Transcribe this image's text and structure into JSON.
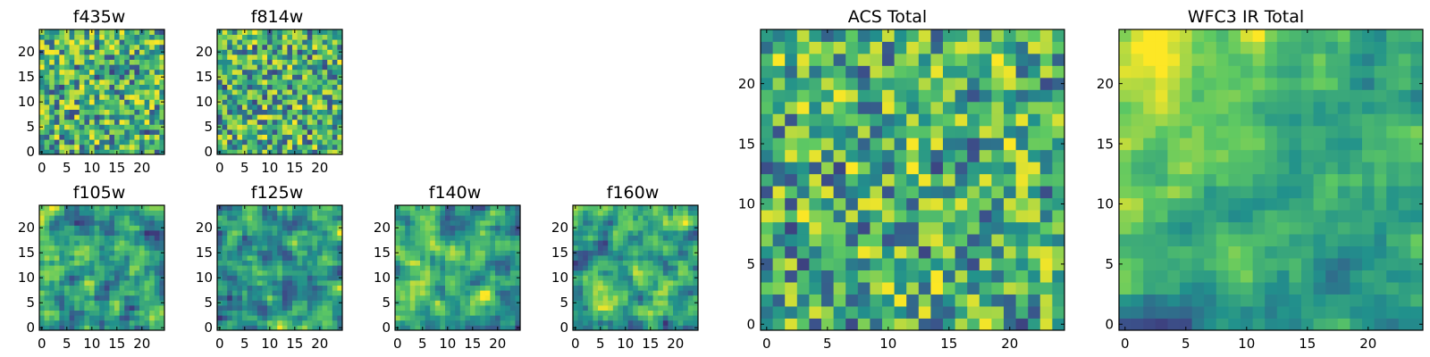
{
  "figure": {
    "background": "#ffffff"
  },
  "colormap": {
    "name": "viridis",
    "stops": [
      "#440154",
      "#3b528b",
      "#21918c",
      "#5ec962",
      "#fde725"
    ]
  },
  "chart_data": [
    {
      "id": "f435w",
      "type": "heatmap",
      "title": "f435w",
      "grid_size": 25,
      "xticks": [
        0,
        5,
        10,
        15,
        20
      ],
      "yticks": [
        0,
        5,
        10,
        15,
        20
      ],
      "xlim": [
        -0.5,
        24.5
      ],
      "ylim": [
        -0.5,
        24.5
      ],
      "pattern": "noise",
      "seed": 11
    },
    {
      "id": "f814w",
      "type": "heatmap",
      "title": "f814w",
      "grid_size": 25,
      "xticks": [
        0,
        5,
        10,
        15,
        20
      ],
      "yticks": [
        0,
        5,
        10,
        15,
        20
      ],
      "xlim": [
        -0.5,
        24.5
      ],
      "ylim": [
        -0.5,
        24.5
      ],
      "pattern": "noise",
      "seed": 23
    },
    {
      "id": "f105w",
      "type": "heatmap",
      "title": "f105w",
      "grid_size": 25,
      "xticks": [
        0,
        5,
        10,
        15,
        20
      ],
      "yticks": [
        0,
        5,
        10,
        15,
        20
      ],
      "xlim": [
        -0.5,
        24.5
      ],
      "ylim": [
        -0.5,
        24.5
      ],
      "pattern": "smooth",
      "seed": 37
    },
    {
      "id": "f125w",
      "type": "heatmap",
      "title": "f125w",
      "grid_size": 25,
      "xticks": [
        0,
        5,
        10,
        15,
        20
      ],
      "yticks": [
        0,
        5,
        10,
        15,
        20
      ],
      "xlim": [
        -0.5,
        24.5
      ],
      "ylim": [
        -0.5,
        24.5
      ],
      "pattern": "smooth",
      "seed": 41
    },
    {
      "id": "f140w",
      "type": "heatmap",
      "title": "f140w",
      "grid_size": 25,
      "xticks": [
        0,
        5,
        10,
        15,
        20
      ],
      "yticks": [
        0,
        5,
        10,
        15,
        20
      ],
      "xlim": [
        -0.5,
        24.5
      ],
      "ylim": [
        -0.5,
        24.5
      ],
      "pattern": "smooth",
      "seed": 53
    },
    {
      "id": "f160w",
      "type": "heatmap",
      "title": "f160w",
      "grid_size": 25,
      "xticks": [
        0,
        5,
        10,
        15,
        20
      ],
      "yticks": [
        0,
        5,
        10,
        15,
        20
      ],
      "xlim": [
        -0.5,
        24.5
      ],
      "ylim": [
        -0.5,
        24.5
      ],
      "pattern": "smooth",
      "seed": 67
    },
    {
      "id": "acs_total",
      "type": "heatmap",
      "title": "ACS Total",
      "grid_size": 25,
      "xticks": [
        0,
        5,
        10,
        15,
        20
      ],
      "yticks": [
        0,
        5,
        10,
        15,
        20
      ],
      "xlim": [
        -0.5,
        24.5
      ],
      "ylim": [
        -0.5,
        24.5
      ],
      "pattern": "noise",
      "seed": 79
    },
    {
      "id": "wfc3_ir_total",
      "type": "heatmap",
      "title": "WFC3 IR Total",
      "grid_size": 25,
      "xticks": [
        0,
        5,
        10,
        15,
        20
      ],
      "yticks": [
        0,
        5,
        10,
        15,
        20
      ],
      "xlim": [
        -0.5,
        24.5
      ],
      "ylim": [
        -0.5,
        24.5
      ],
      "pattern": "gradient",
      "seed": 97
    }
  ]
}
